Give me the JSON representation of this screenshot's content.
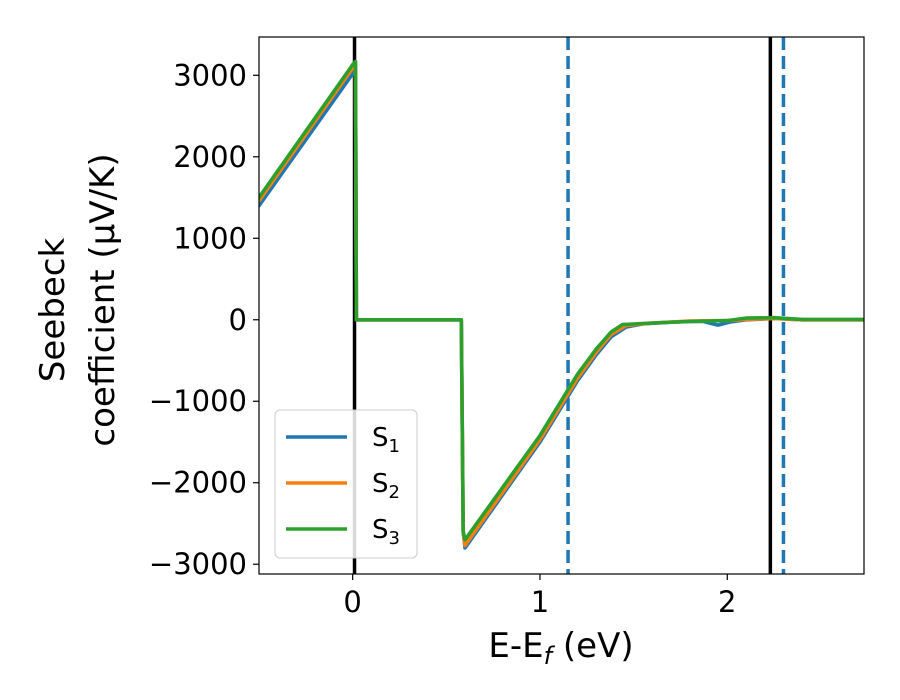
{
  "chart_data": {
    "type": "line",
    "xlabel": "E-E",
    "xlabel_sub": "f",
    "xlabel_unit": " (eV)",
    "ylabel_line1": "Seebeck",
    "ylabel_line2": "coefficient  (μV/K)",
    "xlim": [
      -0.5,
      2.73
    ],
    "ylim": [
      -3120,
      3470
    ],
    "x_ticks": [
      0,
      1,
      2
    ],
    "x_tick_labels": [
      "0",
      "1",
      "2"
    ],
    "y_ticks": [
      -3000,
      -2000,
      -1000,
      0,
      1000,
      2000,
      3000
    ],
    "y_tick_labels": [
      "−3000",
      "−2000",
      "−1000",
      "0",
      "1000",
      "2000",
      "3000"
    ],
    "grid": false,
    "legend_position": "lower-left",
    "series": [
      {
        "name": "S",
        "sub": "1",
        "color": "#1f77b4",
        "points": [
          [
            -0.5,
            1400
          ],
          [
            0.0,
            3020
          ],
          [
            0.015,
            3100
          ],
          [
            0.02,
            0
          ],
          [
            0.58,
            0
          ],
          [
            0.59,
            -2600
          ],
          [
            0.6,
            -2800
          ],
          [
            1.0,
            -1500
          ],
          [
            1.2,
            -750
          ],
          [
            1.3,
            -430
          ],
          [
            1.38,
            -210
          ],
          [
            1.46,
            -90
          ],
          [
            1.55,
            -50
          ],
          [
            1.7,
            -30
          ],
          [
            1.8,
            -20
          ],
          [
            1.87,
            -20
          ],
          [
            1.95,
            -65
          ],
          [
            2.02,
            -25
          ],
          [
            2.1,
            0
          ],
          [
            2.25,
            15
          ],
          [
            2.4,
            0
          ],
          [
            2.73,
            0
          ]
        ]
      },
      {
        "name": "S",
        "sub": "2",
        "color": "#ff7f0e",
        "points": [
          [
            -0.5,
            1460
          ],
          [
            0.0,
            3090
          ],
          [
            0.015,
            3150
          ],
          [
            0.02,
            0
          ],
          [
            0.58,
            0
          ],
          [
            0.59,
            -2600
          ],
          [
            0.6,
            -2770
          ],
          [
            1.0,
            -1470
          ],
          [
            1.2,
            -720
          ],
          [
            1.3,
            -400
          ],
          [
            1.38,
            -180
          ],
          [
            1.46,
            -70
          ],
          [
            1.6,
            -40
          ],
          [
            1.8,
            -15
          ],
          [
            2.0,
            -10
          ],
          [
            2.1,
            5
          ],
          [
            2.25,
            15
          ],
          [
            2.4,
            0
          ],
          [
            2.73,
            0
          ]
        ]
      },
      {
        "name": "S",
        "sub": "3",
        "color": "#2ca02c",
        "points": [
          [
            -0.5,
            1500
          ],
          [
            0.0,
            3130
          ],
          [
            0.015,
            3170
          ],
          [
            0.02,
            0
          ],
          [
            0.58,
            0
          ],
          [
            0.59,
            -2600
          ],
          [
            0.6,
            -2700
          ],
          [
            1.0,
            -1420
          ],
          [
            1.2,
            -670
          ],
          [
            1.3,
            -360
          ],
          [
            1.38,
            -150
          ],
          [
            1.44,
            -60
          ],
          [
            1.6,
            -40
          ],
          [
            1.8,
            -20
          ],
          [
            2.0,
            -10
          ],
          [
            2.1,
            20
          ],
          [
            2.25,
            25
          ],
          [
            2.4,
            5
          ],
          [
            2.73,
            5
          ]
        ]
      }
    ],
    "vlines": [
      {
        "x": 0.01,
        "color": "#000000",
        "style": "solid"
      },
      {
        "x": 2.23,
        "color": "#000000",
        "style": "solid"
      },
      {
        "x": 1.15,
        "color": "#1f77b4",
        "style": "dashed"
      },
      {
        "x": 2.3,
        "color": "#1f77b4",
        "style": "dashed"
      }
    ]
  }
}
